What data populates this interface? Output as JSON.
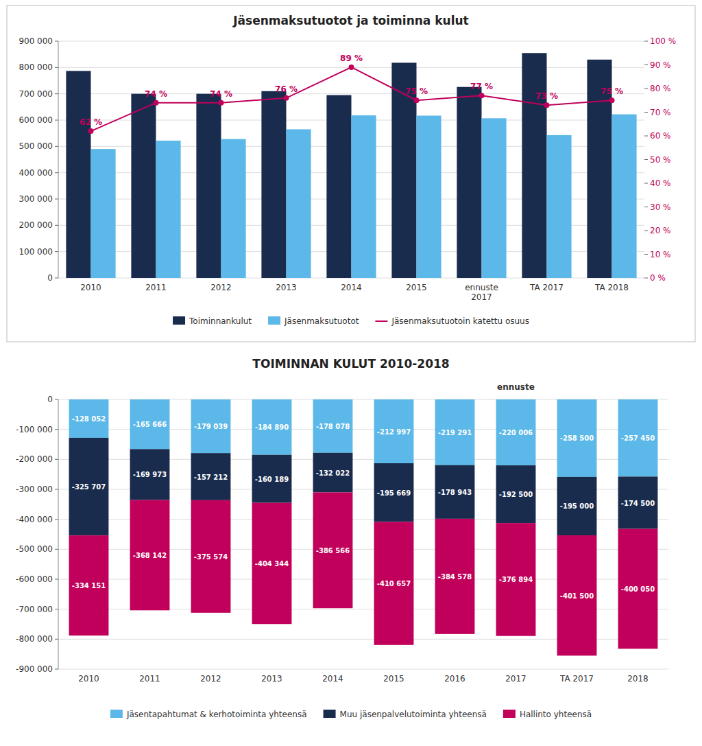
{
  "chart_data": [
    {
      "type": "bar",
      "title": "Jäsenmaksutuotot ja toiminna kulut",
      "categories": [
        "2010",
        "2011",
        "2012",
        "2013",
        "2014",
        "2015",
        "ennuste\n2017",
        "TA 2017",
        "TA 2018"
      ],
      "series": [
        {
          "name": "Toiminnankulut",
          "color": "#1a2c4e",
          "values": [
            787000,
            700000,
            700000,
            710000,
            695000,
            818000,
            726000,
            855000,
            830000
          ]
        },
        {
          "name": "Jäsenmaksutuotot",
          "color": "#5bb8e8",
          "values": [
            490000,
            522000,
            528000,
            565000,
            618000,
            617000,
            607000,
            543000,
            622000
          ]
        },
        {
          "name": "Jäsenmaksutuotoin katettu osuus",
          "type": "line",
          "axis": "y2",
          "color": "#c0005a",
          "marker": "circle",
          "data_labels": true,
          "values": [
            0.62,
            0.74,
            0.74,
            0.76,
            0.89,
            0.75,
            0.77,
            0.73,
            0.75
          ],
          "value_labels": [
            "62 %",
            "74 %",
            "74 %",
            "76 %",
            "89 %",
            "75 %",
            "77 %",
            "73 %",
            "75 %"
          ]
        }
      ],
      "ylim": [
        0,
        900000
      ],
      "yticks": [
        0,
        {
          "value": 100000,
          "label": "100 000"
        },
        {
          "value": 200000,
          "label": "200 000"
        },
        {
          "value": 300000,
          "label": "300 000"
        },
        {
          "value": 400000,
          "label": "400 000"
        },
        {
          "value": 500000,
          "label": "500 000"
        },
        {
          "value": 600000,
          "label": "600 000"
        },
        {
          "value": 700000,
          "label": "700 000"
        },
        {
          "value": 800000,
          "label": "800 000"
        },
        {
          "value": 900000,
          "label": "900 000"
        }
      ],
      "y2lim": [
        0,
        1
      ],
      "y2ticks": [
        {
          "value": 0,
          "label": "0 %"
        },
        {
          "value": 0.1,
          "label": "10 %"
        },
        {
          "value": 0.2,
          "label": "20 %"
        },
        {
          "value": 0.3,
          "label": "30 %"
        },
        {
          "value": 0.4,
          "label": "40 %"
        },
        {
          "value": 0.5,
          "label": "50 %"
        },
        {
          "value": 0.6,
          "label": "60 %"
        },
        {
          "value": 0.7,
          "label": "70 %"
        },
        {
          "value": 0.8,
          "label": "80 %"
        },
        {
          "value": 0.9,
          "label": "90 %"
        },
        {
          "value": 1,
          "label": "100 %"
        }
      ],
      "grid": true,
      "legend": "bottom"
    },
    {
      "type": "bar",
      "stacked": true,
      "title": "TOIMINNAN KULUT 2010-2018",
      "categories": [
        "2010",
        "2011",
        "2012",
        "2013",
        "2014",
        "2015",
        "2016",
        "2017",
        "TA 2017",
        "2018"
      ],
      "series": [
        {
          "name": "Jäsentapahtumat & kerhotoiminta yhteensä",
          "color": "#5bb8e8",
          "values": [
            -128052,
            -165666,
            -179039,
            -184890,
            -178078,
            -212997,
            -219291,
            -220006,
            -258500,
            -257450
          ],
          "value_labels": [
            "-128 052",
            "-165 666",
            "-179 039",
            "-184 890",
            "-178 078",
            "-212 997",
            "-219 291",
            "-220 006",
            "-258 500",
            "-257 450"
          ]
        },
        {
          "name": "Muu jäsenpalvelutoiminta yhteensä",
          "color": "#1a2c4e",
          "values": [
            -325707,
            -169973,
            -157212,
            -160189,
            -132022,
            -195669,
            -178943,
            -192500,
            -195000,
            -174500
          ],
          "value_labels": [
            "-325 707",
            "-169 973",
            "-157 212",
            "-160 189",
            "-132 022",
            "-195 669",
            "-178 943",
            "-192 500",
            "-195 000",
            "-174 500"
          ]
        },
        {
          "name": "Hallinto yhteensä",
          "color": "#c0005a",
          "values": [
            -334151,
            -368142,
            -375574,
            -404344,
            -386566,
            -410657,
            -384578,
            -376894,
            -401500,
            -400050
          ],
          "value_labels": [
            "-334 151",
            "-368 142",
            "-375 574",
            "-404 344",
            "-386 566",
            "-410 657",
            "-384 578",
            "-376 894",
            "-401 500",
            "-400 050"
          ]
        }
      ],
      "data_labels": true,
      "ylim": [
        -900000,
        0
      ],
      "yticks": [
        0,
        {
          "value": -100000,
          "label": "-100 000"
        },
        {
          "value": -200000,
          "label": "-200 000"
        },
        {
          "value": -300000,
          "label": "-300 000"
        },
        {
          "value": -400000,
          "label": "-400 000"
        },
        {
          "value": -500000,
          "label": "-500 000"
        },
        {
          "value": -600000,
          "label": "-600 000"
        },
        {
          "value": -700000,
          "label": "-700 000"
        },
        {
          "value": -800000,
          "label": "-800 000"
        },
        {
          "value": -900000,
          "label": "-900 000"
        }
      ],
      "grid": true,
      "legend": "bottom",
      "annotations": [
        {
          "text": "ennuste",
          "x": "2017"
        }
      ]
    }
  ]
}
